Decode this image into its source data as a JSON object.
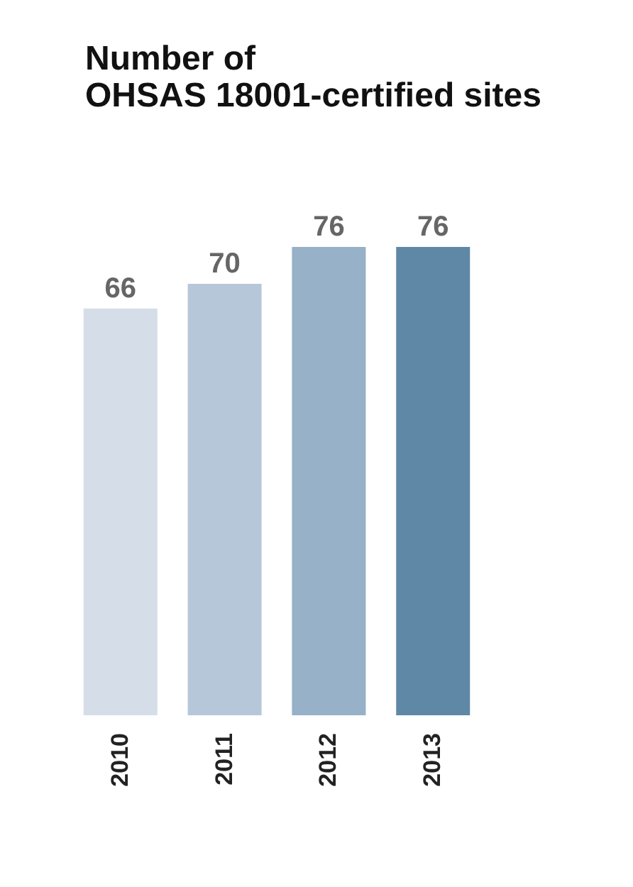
{
  "chart_data": {
    "type": "bar",
    "title": "Number of\nOHSAS 18001-certified sites",
    "categories": [
      "2010",
      "2011",
      "2012",
      "2013"
    ],
    "values": [
      66,
      70,
      76,
      76
    ],
    "colors": [
      "#d5dde8",
      "#b6c7d9",
      "#96b1c8",
      "#5f87a6"
    ],
    "data_labels": true
  }
}
